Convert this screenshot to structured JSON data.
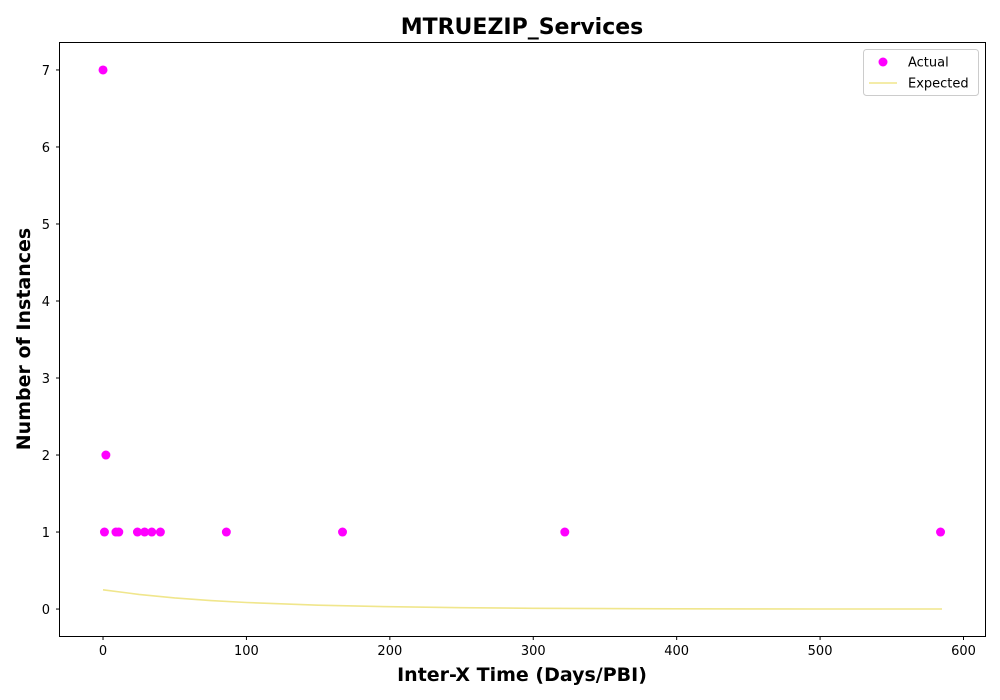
{
  "chart_data": {
    "type": "scatter",
    "title": "MTRUEZIP_Services",
    "xlabel": "Inter-X Time (Days/PBI)",
    "ylabel": "Number of Instances",
    "xlim": [
      -30,
      615
    ],
    "ylim": [
      -0.35,
      7.35
    ],
    "xticks": [
      0,
      100,
      200,
      300,
      400,
      500,
      600
    ],
    "yticks": [
      0,
      1,
      2,
      3,
      4,
      5,
      6,
      7
    ],
    "legend_position": "top-right",
    "grid": false,
    "series": [
      {
        "name": "Actual",
        "kind": "scatter",
        "color": "#ff00ff",
        "points": [
          {
            "x": 0,
            "y": 7
          },
          {
            "x": 1,
            "y": 1
          },
          {
            "x": 2,
            "y": 2
          },
          {
            "x": 9,
            "y": 1
          },
          {
            "x": 11,
            "y": 1
          },
          {
            "x": 24,
            "y": 1
          },
          {
            "x": 29,
            "y": 1
          },
          {
            "x": 34,
            "y": 1
          },
          {
            "x": 40,
            "y": 1
          },
          {
            "x": 86,
            "y": 1
          },
          {
            "x": 167,
            "y": 1
          },
          {
            "x": 322,
            "y": 1
          },
          {
            "x": 584,
            "y": 1
          }
        ]
      },
      {
        "name": "Expected",
        "kind": "line",
        "color": "#f0e68c",
        "points": [
          {
            "x": 0,
            "y": 0.25
          },
          {
            "x": 25,
            "y": 0.19
          },
          {
            "x": 50,
            "y": 0.145
          },
          {
            "x": 75,
            "y": 0.11
          },
          {
            "x": 100,
            "y": 0.085
          },
          {
            "x": 150,
            "y": 0.05
          },
          {
            "x": 200,
            "y": 0.03
          },
          {
            "x": 250,
            "y": 0.017
          },
          {
            "x": 300,
            "y": 0.01
          },
          {
            "x": 350,
            "y": 0.006
          },
          {
            "x": 400,
            "y": 0.0035
          },
          {
            "x": 450,
            "y": 0.002
          },
          {
            "x": 500,
            "y": 0.0012
          },
          {
            "x": 550,
            "y": 0.0007
          },
          {
            "x": 585,
            "y": 0.0005
          }
        ]
      }
    ]
  }
}
